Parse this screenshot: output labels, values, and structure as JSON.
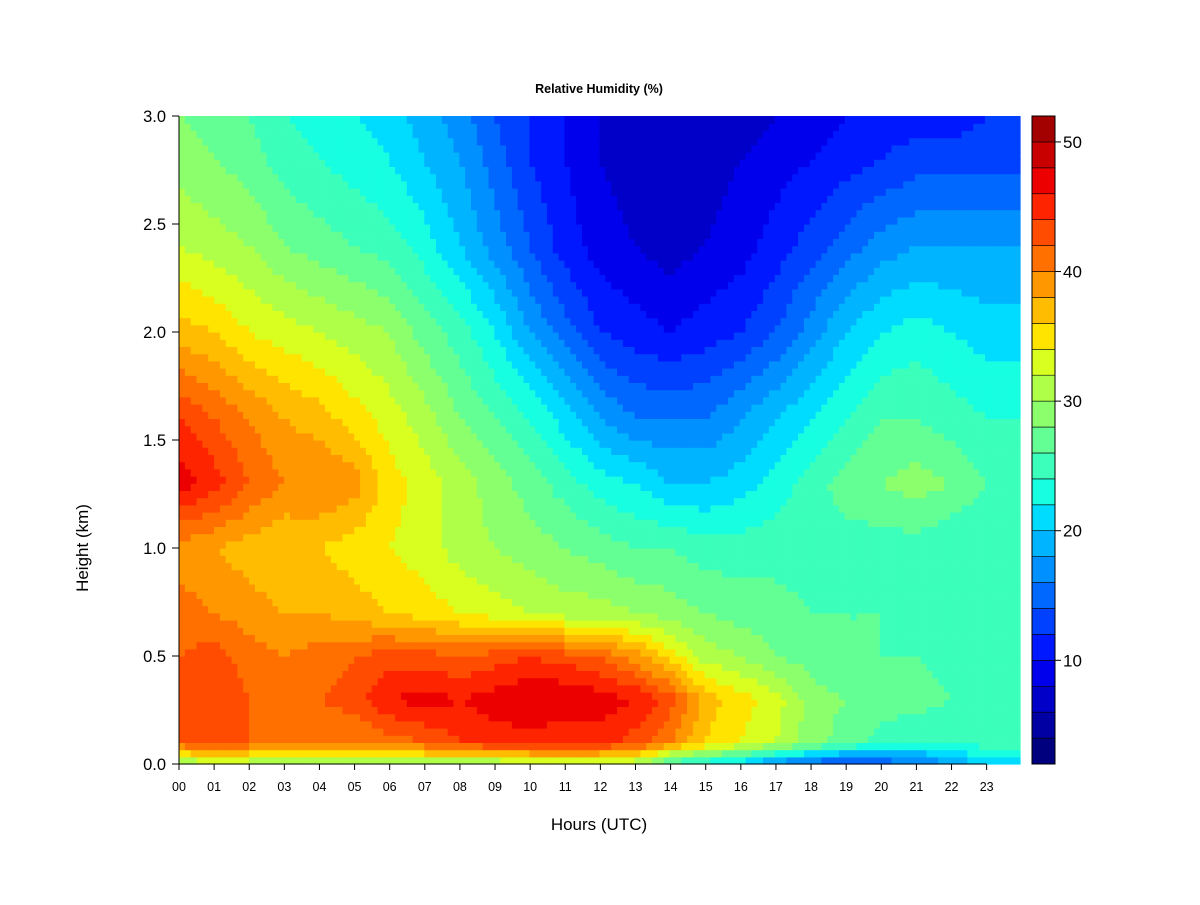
{
  "chart_data": {
    "type": "heatmap",
    "title": "Relative Humidity (%)",
    "xlabel": "Hours (UTC)",
    "ylabel": "Height (km)",
    "xlim": [
      0,
      23.95
    ],
    "ylim": [
      0,
      3.0
    ],
    "x_ticks": [
      "00",
      "01",
      "02",
      "03",
      "04",
      "05",
      "06",
      "07",
      "08",
      "09",
      "10",
      "11",
      "12",
      "13",
      "14",
      "15",
      "16",
      "17",
      "18",
      "19",
      "20",
      "21",
      "22",
      "23"
    ],
    "y_ticks": [
      "0.0",
      "0.5",
      "1.0",
      "1.5",
      "2.0",
      "2.5",
      "3.0"
    ],
    "colorbar": {
      "range": [
        2,
        52
      ],
      "step": 2,
      "ticks": [
        10,
        20,
        30,
        40,
        50
      ],
      "colors": [
        "#00007f",
        "#0000a3",
        "#0000c8",
        "#0000ec",
        "#0018ff",
        "#0040ff",
        "#0068ff",
        "#0090ff",
        "#00b4ff",
        "#00dcff",
        "#17ffe0",
        "#3bffbb",
        "#63ff94",
        "#8bff6c",
        "#afff48",
        "#d8ff1f",
        "#ffe400",
        "#ffbc00",
        "#ff9800",
        "#ff7000",
        "#ff4c00",
        "#ff2400",
        "#ec0000",
        "#c80000",
        "#a30000"
      ]
    },
    "grid_hours": [
      0,
      1,
      2,
      3,
      4,
      5,
      6,
      7,
      8,
      9,
      10,
      11,
      12,
      13,
      14,
      15,
      16,
      17,
      18,
      19,
      20,
      21,
      22,
      23
    ],
    "grid_heights_km": [
      0.0,
      0.1,
      0.3,
      0.5,
      0.7,
      1.0,
      1.3,
      1.6,
      2.0,
      2.4,
      2.8,
      3.0
    ],
    "rh_percent": [
      [
        29,
        31,
        30,
        29,
        29,
        28,
        30,
        30,
        29,
        29,
        31,
        32,
        31,
        30,
        24,
        22,
        20,
        16,
        14,
        12,
        14,
        15,
        18,
        21
      ],
      [
        42,
        43,
        42,
        41,
        40,
        40,
        41,
        42,
        44,
        45,
        45,
        44,
        45,
        43,
        40,
        36,
        34,
        32,
        29,
        27,
        25,
        24,
        24,
        25
      ],
      [
        44,
        44,
        42,
        42,
        42,
        43,
        46,
        47,
        46,
        47,
        48,
        48,
        47,
        46,
        43,
        37,
        35,
        33,
        29,
        28,
        27,
        27,
        26,
        25
      ],
      [
        42,
        43,
        41,
        40,
        41,
        42,
        43,
        43,
        42,
        43,
        44,
        43,
        42,
        39,
        35,
        31,
        30,
        28,
        27,
        26,
        26,
        26,
        25,
        24
      ],
      [
        41,
        40,
        39,
        38,
        38,
        37,
        36,
        35,
        34,
        33,
        32,
        31,
        31,
        30,
        29,
        28,
        27,
        27,
        26,
        26,
        26,
        25,
        25,
        25
      ],
      [
        39,
        38,
        37,
        36,
        36,
        35,
        34,
        33,
        31,
        30,
        29,
        28,
        27,
        26,
        26,
        25,
        25,
        25,
        25,
        25,
        25,
        25,
        24,
        24
      ],
      [
        47,
        45,
        42,
        40,
        40,
        39,
        35,
        33,
        31,
        29,
        27,
        25,
        23,
        22,
        20,
        20,
        21,
        23,
        25,
        27,
        28,
        29,
        28,
        26
      ],
      [
        44,
        42,
        40,
        38,
        37,
        35,
        33,
        31,
        28,
        26,
        24,
        21,
        18,
        16,
        16,
        16,
        18,
        20,
        22,
        24,
        26,
        26,
        25,
        24
      ],
      [
        37,
        36,
        34,
        33,
        32,
        31,
        30,
        27,
        25,
        22,
        18,
        15,
        12,
        11,
        10,
        11,
        12,
        14,
        17,
        20,
        22,
        23,
        22,
        21
      ],
      [
        32,
        31,
        30,
        28,
        27,
        26,
        25,
        23,
        20,
        17,
        14,
        11,
        9,
        8,
        7,
        8,
        9,
        11,
        13,
        15,
        17,
        18,
        18,
        18
      ],
      [
        29,
        28,
        27,
        25,
        24,
        23,
        22,
        20,
        18,
        15,
        12,
        10,
        8,
        7,
        6,
        7,
        8,
        9,
        10,
        11,
        12,
        13,
        13,
        13
      ],
      [
        28,
        27,
        26,
        24,
        23,
        22,
        21,
        19,
        17,
        14,
        12,
        10,
        8,
        7,
        6,
        6,
        7,
        8,
        9,
        10,
        11,
        11,
        11,
        12
      ]
    ]
  }
}
